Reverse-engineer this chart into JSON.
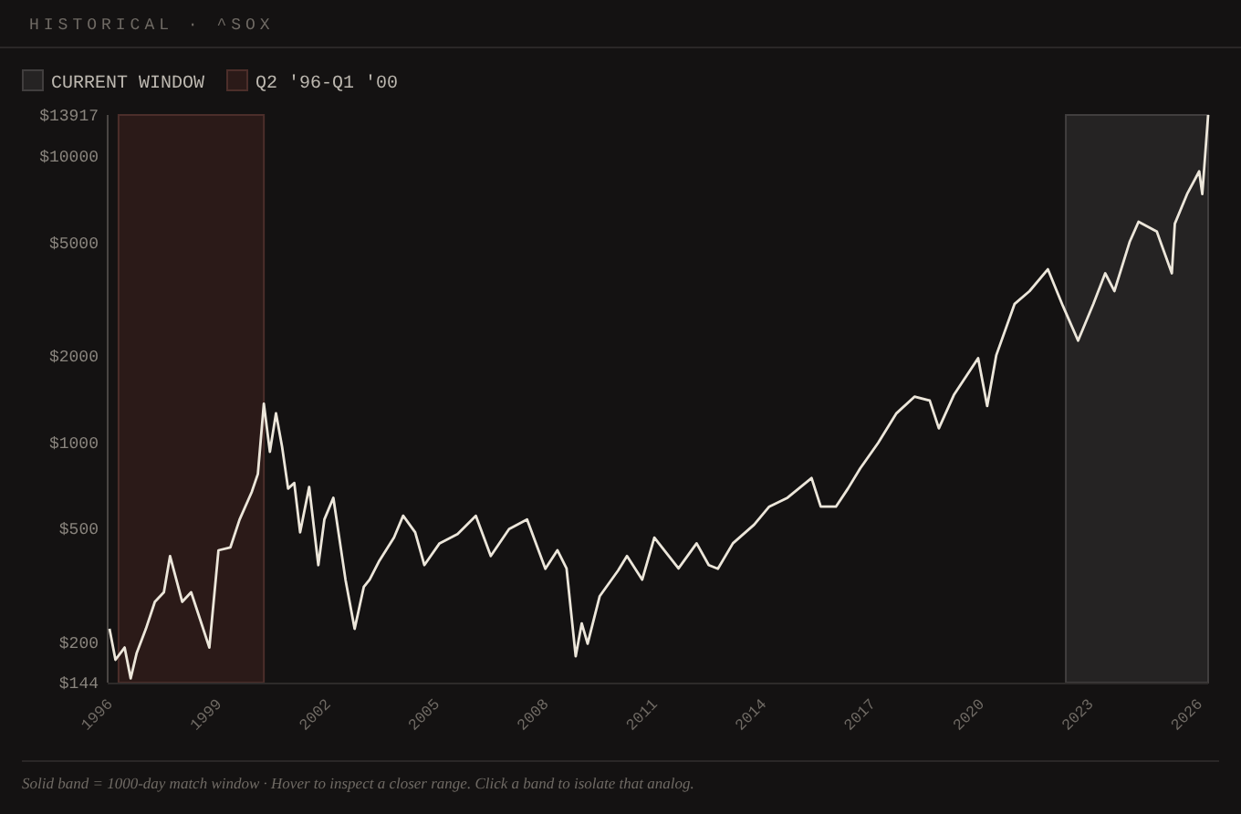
{
  "chart_data": {
    "type": "line",
    "title": "HISTORICAL · ^SOX",
    "log": "y",
    "grid": false,
    "legend": "top left",
    "marker": "none",
    "line_style": "solid",
    "x": [
      "1996-01",
      "1996-03",
      "1996-06",
      "1996-08",
      "1996-10",
      "1997-01",
      "1997-04",
      "1997-07",
      "1997-09",
      "1998-01",
      "1998-04",
      "1998-07",
      "1998-10",
      "1999-01",
      "1999-05",
      "1999-08",
      "1999-12",
      "2000-02",
      "2000-04",
      "2000-06",
      "2000-08",
      "2000-10",
      "2000-12",
      "2001-02",
      "2001-04",
      "2001-07",
      "2001-10",
      "2001-12",
      "2002-03",
      "2002-07",
      "2002-10",
      "2003-01",
      "2003-03",
      "2003-06",
      "2003-11",
      "2004-02",
      "2004-06",
      "2004-09",
      "2005-02",
      "2005-08",
      "2006-02",
      "2006-07",
      "2007-01",
      "2007-07",
      "2008-01",
      "2008-05",
      "2008-08",
      "2008-11",
      "2009-01",
      "2009-03",
      "2009-07",
      "2010-01",
      "2010-04",
      "2010-09",
      "2011-01",
      "2011-09",
      "2012-03",
      "2012-07",
      "2012-10",
      "2013-03",
      "2013-10",
      "2014-03",
      "2014-09",
      "2015-05",
      "2015-08",
      "2016-01",
      "2016-05",
      "2016-09",
      "2017-03",
      "2017-09",
      "2018-03",
      "2018-08",
      "2018-11",
      "2019-04",
      "2019-12",
      "2020-03",
      "2020-06",
      "2020-12",
      "2021-05",
      "2021-11",
      "2022-04",
      "2022-09",
      "2023-02",
      "2023-06",
      "2023-09",
      "2024-02",
      "2024-05",
      "2024-11",
      "2025-04",
      "2025-05",
      "2025-09",
      "2026-01",
      "2026-02",
      "2026-04"
    ],
    "series": [
      {
        "color": "#ece6da",
        "values": [
          222,
          173,
          191,
          149,
          183,
          222,
          276,
          298,
          399,
          276,
          298,
          239,
          191,
          418,
          428,
          535,
          668,
          773,
          1360,
          924,
          1260,
          964,
          687,
          719,
          483,
          696,
          371,
          536,
          638,
          330,
          222,
          311,
          330,
          381,
          463,
          552,
          483,
          371,
          442,
          476,
          552,
          399,
          496,
          536,
          360,
          418,
          361,
          178,
          232,
          197,
          289,
          355,
          399,
          330,
          463,
          361,
          442,
          371,
          360,
          442,
          514,
          594,
          638,
          748,
          594,
          594,
          687,
          808,
          993,
          1260,
          1440,
          1396,
          1116,
          1460,
          1964,
          1336,
          2013,
          3036,
          3370,
          4017,
          2992,
          2262,
          3036,
          3889,
          3370,
          5000,
          5890,
          5440,
          3890,
          5800,
          7360,
          8840,
          7360,
          13917
        ]
      }
    ],
    "xlim": [
      "1996-01",
      "2026-04"
    ],
    "xticks": [
      "1996",
      "1999",
      "2002",
      "2005",
      "2008",
      "2011",
      "2014",
      "2017",
      "2020",
      "2023",
      "2026"
    ],
    "ylim": [
      144,
      13917
    ],
    "yticks": [
      {
        "value": 144,
        "label": "$144"
      },
      {
        "value": 200,
        "label": "$200"
      },
      {
        "value": 500,
        "label": "$500"
      },
      {
        "value": 1000,
        "label": "$1000"
      },
      {
        "value": 2000,
        "label": "$2000"
      },
      {
        "value": 5000,
        "label": "$5000"
      },
      {
        "value": 10000,
        "label": "$10000"
      },
      {
        "value": 13917,
        "label": "$13917"
      }
    ],
    "bands": [
      {
        "axis": "x",
        "from": "2022-05",
        "to": "2026-04",
        "label": "CURRENT WINDOW",
        "color": "#252323"
      },
      {
        "axis": "x",
        "from": "1996-04",
        "to": "2000-04",
        "label": "Q2 '96-Q1 '00",
        "color": "#2b1a18"
      }
    ],
    "annotations": [
      "Solid band = 1000-day match window · Hover to inspect a closer range. Click a band to isolate that analog."
    ]
  }
}
